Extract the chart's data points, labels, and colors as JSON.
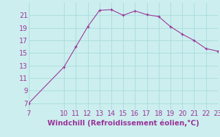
{
  "x": [
    7,
    10,
    11,
    12,
    13,
    14,
    15,
    16,
    17,
    18,
    19,
    20,
    21,
    22,
    23
  ],
  "y": [
    7.0,
    12.8,
    16.0,
    19.2,
    21.8,
    21.9,
    21.0,
    21.7,
    21.1,
    20.8,
    19.2,
    18.0,
    17.0,
    15.7,
    15.3
  ],
  "xlim": [
    7,
    23
  ],
  "ylim": [
    6,
    23
  ],
  "xticks": [
    7,
    10,
    11,
    12,
    13,
    14,
    15,
    16,
    17,
    18,
    19,
    20,
    21,
    22,
    23
  ],
  "yticks": [
    7,
    9,
    11,
    13,
    15,
    17,
    19,
    21
  ],
  "xlabel": "Windchill (Refroidissement éolien,°C)",
  "line_color": "#993399",
  "marker": "+",
  "bg_color": "#cceeee",
  "grid_color": "#aadddd",
  "tick_color": "#993399",
  "label_color": "#993399",
  "font_size": 7.0,
  "xlabel_fontsize": 7.5
}
